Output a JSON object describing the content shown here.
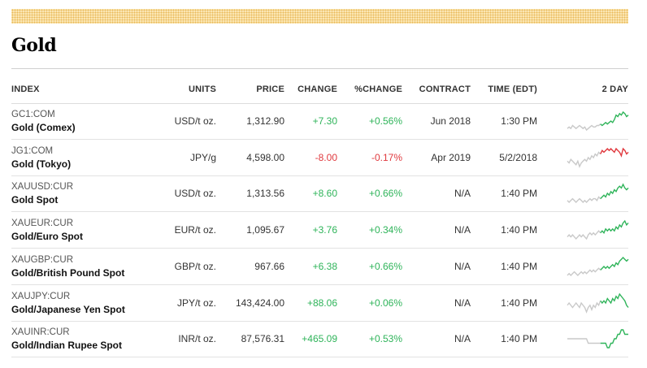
{
  "page": {
    "title": "Gold"
  },
  "colors": {
    "positive": "#2fb45a",
    "negative": "#e0393e",
    "neutral_spark": "#c9c9c9",
    "deco_bar": "#fbe6b3"
  },
  "table": {
    "headers": {
      "index": "INDEX",
      "units": "UNITS",
      "price": "PRICE",
      "change": "CHANGE",
      "pct_change": "%CHANGE",
      "contract": "CONTRACT",
      "time": "TIME (EDT)",
      "chart": "2 DAY"
    },
    "rows": [
      {
        "ticker": "GC1:COM",
        "name": "Gold (Comex)",
        "units": "USD/t oz.",
        "price": "1,312.90",
        "change": "+7.30",
        "pct_change": "+0.56%",
        "contract": "Jun 2018",
        "time": "1:30 PM",
        "direction": "up",
        "spark": [
          3,
          4,
          3,
          5,
          4,
          3,
          4,
          5,
          4,
          3,
          4,
          2,
          3,
          4,
          5,
          4,
          4,
          5,
          5,
          6,
          5,
          6,
          7,
          6,
          7,
          8,
          7,
          9,
          12,
          11,
          13,
          12,
          14,
          13,
          11,
          12
        ]
      },
      {
        "ticker": "JG1:COM",
        "name": "Gold (Tokyo)",
        "units": "JPY/g",
        "price": "4,598.00",
        "change": "-8.00",
        "pct_change": "-0.17%",
        "contract": "Apr 2019",
        "time": "5/2/2018",
        "direction": "down",
        "spark": [
          5,
          4,
          6,
          5,
          4,
          3,
          5,
          2,
          4,
          5,
          6,
          5,
          7,
          6,
          8,
          7,
          9,
          8,
          10,
          9,
          11,
          10,
          11,
          12,
          11,
          12,
          11,
          10,
          12,
          11,
          10,
          8,
          12,
          11,
          9,
          10
        ]
      },
      {
        "ticker": "XAUUSD:CUR",
        "name": "Gold Spot",
        "units": "USD/t oz.",
        "price": "1,313.56",
        "change": "+8.60",
        "pct_change": "+0.66%",
        "contract": "N/A",
        "time": "1:40 PM",
        "direction": "up",
        "spark": [
          5,
          4,
          5,
          6,
          5,
          4,
          5,
          6,
          5,
          4,
          5,
          4,
          5,
          6,
          5,
          6,
          6,
          5,
          7,
          6,
          7,
          8,
          7,
          9,
          8,
          10,
          9,
          11,
          10,
          12,
          13,
          12,
          14,
          12,
          11,
          12
        ]
      },
      {
        "ticker": "XAUEUR:CUR",
        "name": "Gold/Euro Spot",
        "units": "EUR/t oz.",
        "price": "1,095.67",
        "change": "+3.76",
        "pct_change": "+0.34%",
        "contract": "N/A",
        "time": "1:40 PM",
        "direction": "up",
        "spark": [
          5,
          6,
          5,
          6,
          5,
          4,
          5,
          6,
          5,
          6,
          5,
          4,
          6,
          7,
          6,
          7,
          6,
          7,
          8,
          7,
          8,
          7,
          9,
          8,
          9,
          8,
          9,
          8,
          10,
          9,
          11,
          10,
          12,
          13,
          11,
          12
        ]
      },
      {
        "ticker": "XAUGBP:CUR",
        "name": "Gold/British Pound Spot",
        "units": "GBP/t oz.",
        "price": "967.66",
        "change": "+6.38",
        "pct_change": "+0.66%",
        "contract": "N/A",
        "time": "1:40 PM",
        "direction": "up",
        "spark": [
          4,
          5,
          4,
          5,
          6,
          5,
          4,
          5,
          6,
          5,
          6,
          5,
          6,
          7,
          6,
          7,
          6,
          7,
          8,
          7,
          8,
          9,
          8,
          9,
          8,
          9,
          10,
          9,
          11,
          10,
          12,
          13,
          14,
          13,
          12,
          13
        ]
      },
      {
        "ticker": "XAUJPY:CUR",
        "name": "Gold/Japanese Yen Spot",
        "units": "JPY/t oz.",
        "price": "143,424.00",
        "change": "+88.06",
        "pct_change": "+0.06%",
        "contract": "N/A",
        "time": "1:40 PM",
        "direction": "up",
        "spark": [
          8,
          9,
          8,
          7,
          8,
          9,
          8,
          7,
          9,
          8,
          7,
          5,
          7,
          8,
          6,
          8,
          7,
          9,
          8,
          10,
          9,
          10,
          9,
          11,
          10,
          9,
          11,
          10,
          12,
          11,
          13,
          12,
          11,
          10,
          8,
          7
        ]
      },
      {
        "ticker": "XAUINR:CUR",
        "name": "Gold/Indian Rupee Spot",
        "units": "INR/t oz.",
        "price": "87,576.31",
        "change": "+465.09",
        "pct_change": "+0.53%",
        "contract": "N/A",
        "time": "1:40 PM",
        "direction": "up",
        "spark": [
          8,
          8,
          8,
          8,
          8,
          8,
          8,
          8,
          8,
          8,
          8,
          8,
          7,
          7,
          7,
          7,
          7,
          7,
          7,
          7,
          7,
          7,
          7,
          6,
          6,
          7,
          7,
          8,
          8,
          9,
          9,
          10,
          10,
          9,
          9,
          9
        ]
      }
    ]
  }
}
